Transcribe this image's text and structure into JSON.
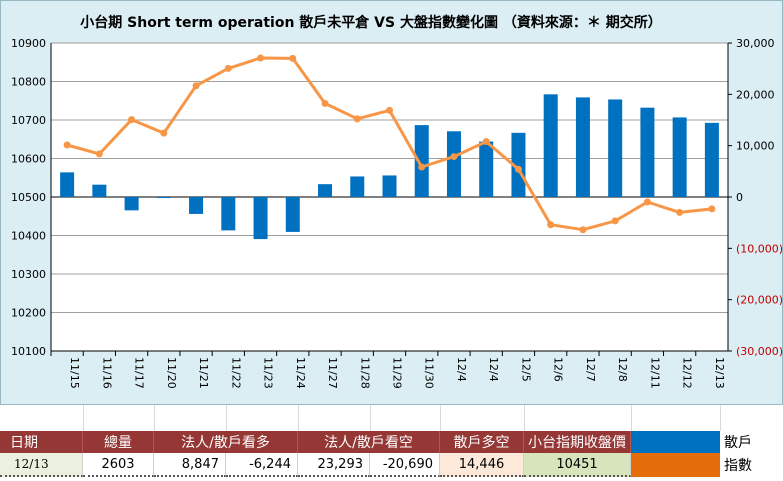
{
  "chart_data": {
    "type": "bar+line",
    "title": "小台期 Short term operation  散戶未平倉  VS 大盤指數變化圖  （資料來源：＊ 期交所）",
    "categories": [
      "11/15",
      "11/16",
      "11/17",
      "11/20",
      "11/21",
      "11/22",
      "11/23",
      "11/24",
      "11/27",
      "11/28",
      "11/29",
      "11/30",
      "12/4",
      "12/4",
      "12/5",
      "12/6",
      "12/7",
      "12/8",
      "12/11",
      "12/12",
      "12/13"
    ],
    "left_axis": {
      "min": 10100,
      "max": 10900,
      "ticks": [
        "10900",
        "10800",
        "10700",
        "10600",
        "10500",
        "10400",
        "10300",
        "10200",
        "10100"
      ]
    },
    "right_axis": {
      "min": -30000,
      "max": 30000,
      "ticks": [
        "30,000",
        "20,000",
        "10,000",
        "0",
        "(10,000)",
        "(20,000)",
        "(30,000)"
      ]
    },
    "series": [
      {
        "name": "散戶",
        "type": "bar",
        "axis": "right",
        "color": "#0070c0",
        "values": [
          4800,
          2400,
          -2600,
          -200,
          -3300,
          -6500,
          -8200,
          -6800,
          2500,
          4000,
          4200,
          14000,
          12800,
          10800,
          12500,
          20000,
          19400,
          19000,
          17400,
          15500,
          14446
        ]
      },
      {
        "name": "指數",
        "type": "line",
        "axis": "left",
        "color": "#f79646",
        "values": [
          10635,
          10612,
          10701,
          10666,
          10789,
          10834,
          10861,
          10860,
          10743,
          10703,
          10725,
          10578,
          10605,
          10644,
          10572,
          10428,
          10415,
          10438,
          10487,
          10460,
          10469
        ]
      }
    ],
    "grid": true
  },
  "table": {
    "headers": [
      "日期",
      "總量",
      "法人/散戶看多",
      "法人/散戶看空",
      "散戶多空",
      "小台指期收盤價"
    ],
    "row": [
      "12/13",
      "2603",
      "8,847",
      "-6,244",
      "23,293",
      "-20,690",
      "14,446",
      "10451"
    ],
    "legend": [
      {
        "label": "散戶",
        "color": "#0070c0"
      },
      {
        "label": "指數",
        "color": "#e46c0a"
      }
    ]
  }
}
